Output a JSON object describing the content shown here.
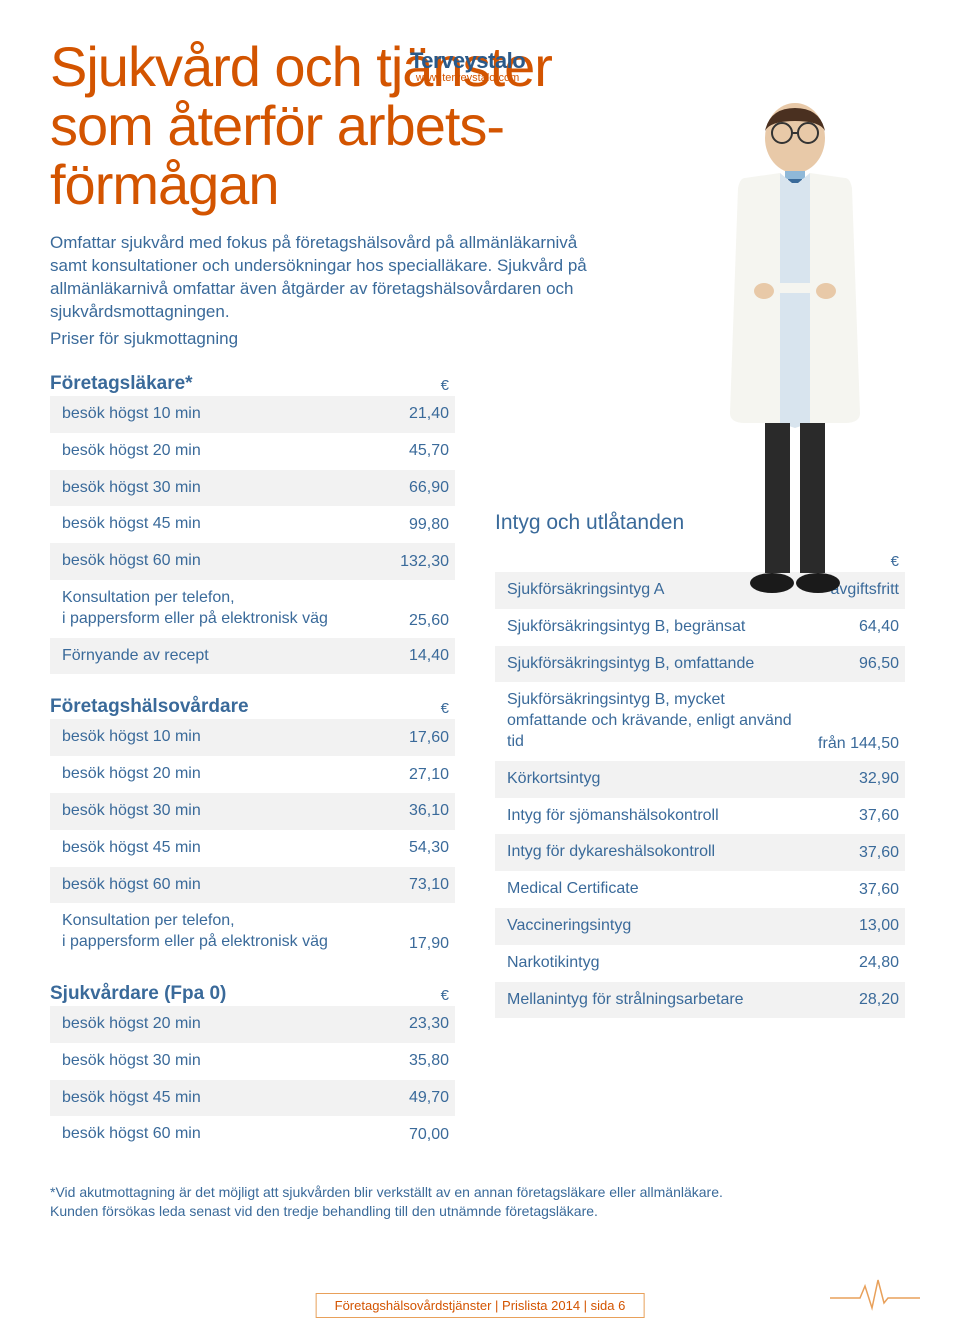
{
  "brand": {
    "name": "Terveystalo",
    "url": "www.terveystalo.com"
  },
  "title_lines": [
    "Sjukvård och tjänster",
    "som återför arbets-",
    "förmågan"
  ],
  "intro1": "Omfattar sjukvård med fokus på företagshälsovård på allmänläkarnivå samt konsultationer och undersökningar hos specialläkare. Sjukvård på allmänläkarnivå omfattar även åtgärder av företagshälsovårdaren och sjukvårdsmottagningen.",
  "intro2": "Priser för sjukmottagning",
  "euro": "€",
  "sections": {
    "foretagslakare": {
      "heading": "Företagsläkare*",
      "rows": [
        {
          "label": "besök högst 10 min",
          "value": "21,40"
        },
        {
          "label": "besök högst 20 min",
          "value": "45,70"
        },
        {
          "label": "besök högst 30 min",
          "value": "66,90"
        },
        {
          "label": "besök högst 45 min",
          "value": "99,80"
        },
        {
          "label": "besök högst 60 min",
          "value": "132,30"
        },
        {
          "label": "Konsultation per telefon,\ni pappersform eller på elektronisk väg",
          "value": "25,60",
          "multi": true
        },
        {
          "label": "Förnyande av recept",
          "value": "14,40"
        }
      ]
    },
    "foretagshalsovardare": {
      "heading": "Företagshälsovårdare",
      "rows": [
        {
          "label": "besök högst 10 min",
          "value": "17,60"
        },
        {
          "label": "besök högst 20 min",
          "value": "27,10"
        },
        {
          "label": "besök högst 30 min",
          "value": "36,10"
        },
        {
          "label": "besök högst 45 min",
          "value": "54,30"
        },
        {
          "label": "besök högst 60 min",
          "value": "73,10"
        },
        {
          "label": "Konsultation per telefon,\ni pappersform eller på elektronisk väg",
          "value": "17,90",
          "multi": true
        }
      ]
    },
    "sjukvardare": {
      "heading": "Sjukvårdare (Fpa 0)",
      "rows": [
        {
          "label": "besök högst 20 min",
          "value": "23,30"
        },
        {
          "label": "besök högst 30 min",
          "value": "35,80"
        },
        {
          "label": "besök högst 45 min",
          "value": "49,70"
        },
        {
          "label": "besök högst 60 min",
          "value": "70,00"
        }
      ]
    },
    "intyg": {
      "heading": "Intyg och utlåtanden",
      "rows": [
        {
          "label": "Sjukförsäkringsintyg A",
          "value": "avgiftsfritt"
        },
        {
          "label": "Sjukförsäkringsintyg B, begränsat",
          "value": "64,40"
        },
        {
          "label": "Sjukförsäkringsintyg B, omfattande",
          "value": "96,50"
        },
        {
          "label": "Sjukförsäkringsintyg B, mycket omfattande och krävande, enligt använd tid",
          "value": "från 144,50",
          "multi": true
        },
        {
          "label": "Körkortsintyg",
          "value": "32,90"
        },
        {
          "label": "Intyg för sjömanshälsokontroll",
          "value": "37,60"
        },
        {
          "label": "Intyg för dykareshälsokontroll",
          "value": "37,60"
        },
        {
          "label": "Medical Certificate",
          "value": "37,60"
        },
        {
          "label": "Vaccineringsintyg",
          "value": "13,00"
        },
        {
          "label": "Narkotikintyg",
          "value": "24,80"
        },
        {
          "label": "Mellanintyg för strålningsarbetare",
          "value": "28,20"
        }
      ]
    }
  },
  "footnote1": "*Vid akutmottagning är det möjligt att sjukvården blir verkställt av en annan företagsläkare eller allmänläkare.",
  "footnote2": "Kunden försökas leda senast vid den tredje behandling till den utnämnde företagsläkare.",
  "footer": "Företagshälsovårdstjänster | Prislista 2014 | sida 6",
  "colors": {
    "accent": "#d35400",
    "text_blue": "#3a6a9a",
    "shade": "#f2f2f2",
    "border": "#e8a05a"
  }
}
